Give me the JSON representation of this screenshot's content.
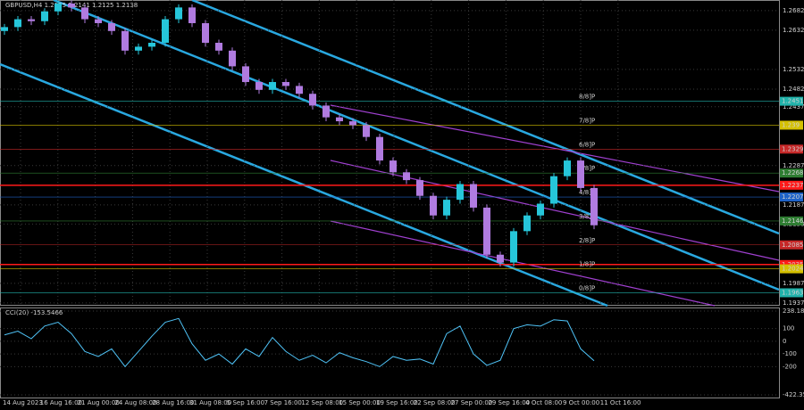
{
  "chart_data": {
    "type": "candlestick",
    "title": "GBPUSD,H4  1.2135 1.2141 1.2125 1.2138",
    "colors": {
      "up": "#26c6da",
      "down": "#b07be0",
      "background": "#000000",
      "grid": "#3a3a3a",
      "axis_text": "#d0d0d0"
    },
    "grid": true,
    "categories": [
      "14 Aug 2023",
      "16 Aug 16:00",
      "21 Aug 00:00",
      "24 Aug 08:00",
      "28 Aug 16:00",
      "31 Aug 08:00",
      "5 Sep 16:00",
      "7 Sep 16:00",
      "12 Sep 08:00",
      "15 Sep 00:00",
      "19 Sep 16:00",
      "22 Sep 08:00",
      "27 Sep 00:00",
      "29 Sep 16:00",
      "4 Oct 08:00",
      "9 Oct 00:00",
      "11 Oct 16:00"
    ],
    "open": [
      1.263,
      1.264,
      1.266,
      1.2655,
      1.268,
      1.27,
      1.269,
      1.266,
      1.265,
      1.263,
      1.258,
      1.259,
      1.26,
      1.266,
      1.269,
      1.265,
      1.26,
      1.258,
      1.254,
      1.25,
      1.248,
      1.25,
      1.249,
      1.247,
      1.244,
      1.241,
      1.24,
      1.239,
      1.236,
      1.23,
      1.227,
      1.225,
      1.221,
      1.216,
      1.22,
      1.224,
      1.218,
      1.206,
      1.204,
      1.212,
      1.216,
      1.219,
      1.226,
      1.23,
      1.223
    ],
    "high": [
      1.2648,
      1.2668,
      1.2668,
      1.2688,
      1.2708,
      1.2708,
      1.2698,
      1.2668,
      1.2658,
      1.2638,
      1.2598,
      1.2608,
      1.2668,
      1.2698,
      1.2698,
      1.2658,
      1.2608,
      1.2588,
      1.2548,
      1.2508,
      1.2508,
      1.2508,
      1.2498,
      1.2478,
      1.2448,
      1.2418,
      1.2408,
      1.2398,
      1.2368,
      1.2308,
      1.2278,
      1.2258,
      1.2218,
      1.2208,
      1.2248,
      1.2248,
      1.2188,
      1.2068,
      1.2128,
      1.2168,
      1.2198,
      1.2268,
      1.2308,
      1.2308,
      1.2238
    ],
    "low": [
      1.262,
      1.263,
      1.2645,
      1.2645,
      1.267,
      1.268,
      1.265,
      1.264,
      1.262,
      1.257,
      1.257,
      1.258,
      1.259,
      1.265,
      1.264,
      1.259,
      1.257,
      1.253,
      1.249,
      1.247,
      1.247,
      1.248,
      1.246,
      1.243,
      1.24,
      1.239,
      1.238,
      1.235,
      1.229,
      1.226,
      1.224,
      1.22,
      1.215,
      1.215,
      1.219,
      1.217,
      1.205,
      1.203,
      1.203,
      1.211,
      1.215,
      1.218,
      1.225,
      1.222,
      1.2125
    ],
    "close": [
      1.264,
      1.266,
      1.2655,
      1.268,
      1.27,
      1.269,
      1.266,
      1.265,
      1.263,
      1.258,
      1.259,
      1.26,
      1.266,
      1.269,
      1.265,
      1.26,
      1.258,
      1.254,
      1.25,
      1.248,
      1.25,
      1.249,
      1.247,
      1.244,
      1.241,
      1.24,
      1.239,
      1.236,
      1.23,
      1.227,
      1.225,
      1.221,
      1.216,
      1.22,
      1.224,
      1.218,
      1.206,
      1.204,
      1.212,
      1.216,
      1.219,
      1.226,
      1.23,
      1.223,
      1.2135
    ],
    "ylim": [
      1.193,
      1.2709
    ],
    "yticks": [
      1.2682,
      1.2632,
      1.2532,
      1.2482,
      1.2437,
      1.2287,
      1.2187,
      1.2138,
      1.1987,
      1.1937
    ],
    "levels": [
      {
        "value": 1.2451,
        "color": "#20b2aa",
        "murray": "8/8]P"
      },
      {
        "value": 1.239,
        "color": "#d4c000",
        "murray": "7/8]P"
      },
      {
        "value": 1.2329,
        "color": "#c62828",
        "murray": "6/8]P"
      },
      {
        "value": 1.2268,
        "color": "#2e7d32",
        "murray": "5/8]P"
      },
      {
        "value": 1.2237,
        "color": "#ff1a1a",
        "line": true
      },
      {
        "value": 1.2207,
        "color": "#1e63c8",
        "murray": "4/8]P"
      },
      {
        "value": 1.2146,
        "color": "#2e7d32",
        "murray": "3/8]P"
      },
      {
        "value": 1.2085,
        "color": "#c62828",
        "murray": "2/8]P"
      },
      {
        "value": 1.2035,
        "color": "#ff1a1a",
        "line": true
      },
      {
        "value": 1.2024,
        "color": "#d4c000",
        "murray": "1/8]P"
      },
      {
        "value": 1.1963,
        "color": "#20b2aa",
        "murray": "0/8]P"
      }
    ],
    "indicator": {
      "name": "CCI(20) -153.5466",
      "color": "#4fc3f7",
      "values": [
        50,
        80,
        20,
        120,
        150,
        60,
        -80,
        -120,
        -60,
        -200,
        -80,
        40,
        150,
        180,
        -20,
        -150,
        -100,
        -180,
        -60,
        -120,
        30,
        -80,
        -150,
        -110,
        -170,
        -90,
        -130,
        -160,
        -200,
        -120,
        -150,
        -140,
        -180,
        60,
        120,
        -100,
        -190,
        -150,
        100,
        130,
        120,
        170,
        160,
        -60,
        -153.5
      ],
      "ylim": [
        -422.356,
        238.185
      ],
      "yticks": [
        238.185,
        100,
        0,
        -100,
        -200,
        -422.356
      ]
    }
  }
}
